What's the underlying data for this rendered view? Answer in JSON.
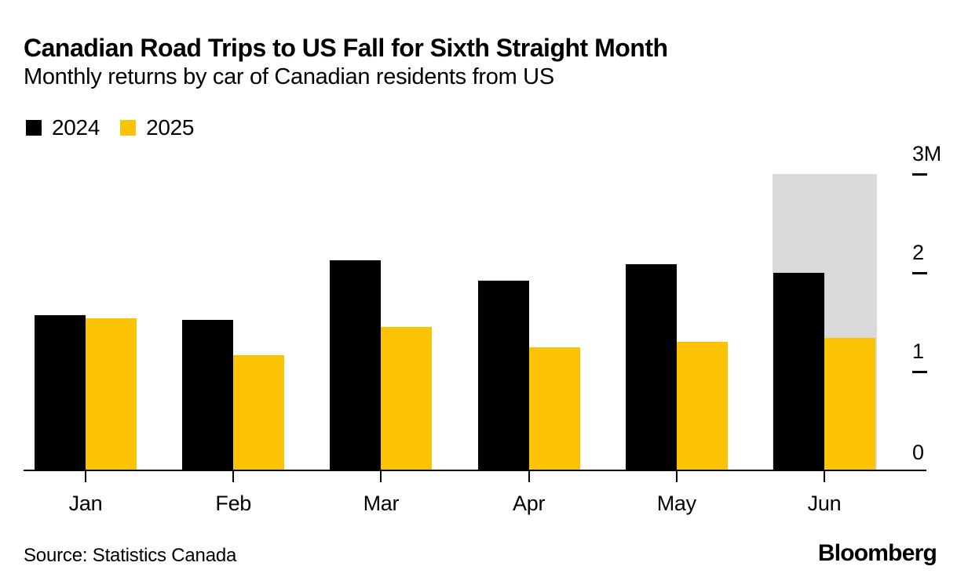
{
  "header": {
    "title": "Canadian Road Trips to US Fall for Sixth Straight Month",
    "subtitle": "Monthly returns by car of Canadian residents from US"
  },
  "footer": {
    "source": "Source: Statistics Canada",
    "brand": "Bloomberg"
  },
  "colors": {
    "series_2024": "#000000",
    "series_2025": "#FCC204",
    "highlight_band": "#D9D9D9",
    "axis": "#000000",
    "background": "#FFFFFF"
  },
  "chart_data": {
    "type": "bar",
    "title": "Canadian Road Trips to US Fall for Sixth Straight Month",
    "subtitle": "Monthly returns by car of Canadian residents from US",
    "categories": [
      "Jan",
      "Feb",
      "Mar",
      "Apr",
      "May",
      "Jun"
    ],
    "series": [
      {
        "name": "2024",
        "color": "#000000",
        "values": [
          1.57,
          1.52,
          2.13,
          1.92,
          2.09,
          2.0
        ]
      },
      {
        "name": "2025",
        "color": "#FCC204",
        "values": [
          1.54,
          1.17,
          1.45,
          1.25,
          1.3,
          1.34
        ]
      }
    ],
    "unit": "millions",
    "ylim": [
      0,
      3
    ],
    "yticks": [
      {
        "value": 0,
        "label": "0"
      },
      {
        "value": 1,
        "label": "1"
      },
      {
        "value": 2,
        "label": "2"
      },
      {
        "value": 3,
        "label": "3M"
      }
    ],
    "highlight_band": {
      "category": "Jun",
      "from": 0,
      "to": 3,
      "color": "#D9D9D9"
    },
    "grid": false,
    "legend_position": "top-left",
    "value_axis_side": "right"
  }
}
